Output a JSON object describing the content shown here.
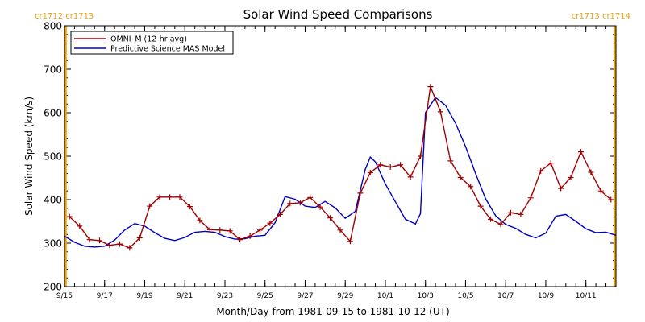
{
  "chart_data": {
    "type": "line",
    "title": "Solar Wind Speed Comparisons",
    "xlabel": "Month/Day from 1981-09-15 to 1981-10-12 (UT)",
    "ylabel": "Solar Wind Speed (km/s)",
    "xlim": [
      "1981-09-15T00:00",
      "1981-10-12T12:00"
    ],
    "ylim": [
      200,
      800
    ],
    "y_ticks": [
      200,
      300,
      400,
      500,
      600,
      700,
      800
    ],
    "x_tick_labels": [
      "9/15",
      "9/17",
      "9/19",
      "9/21",
      "9/23",
      "9/25",
      "9/27",
      "9/29",
      "10/1",
      "10/3",
      "10/5",
      "10/7",
      "10/9",
      "10/11"
    ],
    "x_tick_dates": [
      "1981-09-15",
      "1981-09-17",
      "1981-09-19",
      "1981-09-21",
      "1981-09-23",
      "1981-09-25",
      "1981-09-27",
      "1981-09-29",
      "1981-10-01",
      "1981-10-03",
      "1981-10-05",
      "1981-10-07",
      "1981-10-09",
      "1981-10-11"
    ],
    "legend_position": "top-left",
    "grid": false,
    "carrington_labels": {
      "left": "cr1712 cr1713",
      "right": "cr1713 cr1714",
      "left_date": "1981-09-15T00:00",
      "right_date": "1981-10-12T12:00",
      "color": "#f0a000"
    },
    "series": [
      {
        "name": "OMNI_M (12-hr avg)",
        "color": "#a00000",
        "markers": true,
        "points": [
          [
            "1981-09-15T06:00",
            361
          ],
          [
            "1981-09-15T18:00",
            339
          ],
          [
            "1981-09-16T06:00",
            308
          ],
          [
            "1981-09-16T18:00",
            306
          ],
          [
            "1981-09-17T06:00",
            295
          ],
          [
            "1981-09-17T18:00",
            298
          ],
          [
            "1981-09-18T06:00",
            289
          ],
          [
            "1981-09-18T18:00",
            312
          ],
          [
            "1981-09-19T06:00",
            385
          ],
          [
            "1981-09-19T18:00",
            406
          ],
          [
            "1981-09-20T06:00",
            406
          ],
          [
            "1981-09-20T18:00",
            406
          ],
          [
            "1981-09-21T06:00",
            384
          ],
          [
            "1981-09-21T18:00",
            352
          ],
          [
            "1981-09-22T06:00",
            331
          ],
          [
            "1981-09-22T18:00",
            330
          ],
          [
            "1981-09-23T06:00",
            328
          ],
          [
            "1981-09-23T18:00",
            308
          ],
          [
            "1981-09-24T06:00",
            316
          ],
          [
            "1981-09-24T18:00",
            330
          ],
          [
            "1981-09-25T06:00",
            346
          ],
          [
            "1981-09-25T18:00",
            366
          ],
          [
            "1981-09-26T06:00",
            391
          ],
          [
            "1981-09-26T18:00",
            393
          ],
          [
            "1981-09-27T06:00",
            405
          ],
          [
            "1981-09-27T18:00",
            383
          ],
          [
            "1981-09-28T06:00",
            358
          ],
          [
            "1981-09-28T18:00",
            330
          ],
          [
            "1981-09-29T06:00",
            304
          ],
          [
            "1981-09-29T18:00",
            415
          ],
          [
            "1981-09-30T06:00",
            462
          ],
          [
            "1981-09-30T18:00",
            480
          ],
          [
            "1981-10-01T06:00",
            475
          ],
          [
            "1981-10-01T18:00",
            480
          ],
          [
            "1981-10-02T06:00",
            452
          ],
          [
            "1981-10-02T18:00",
            500
          ],
          [
            "1981-10-03T06:00",
            660
          ],
          [
            "1981-10-03T18:00",
            602
          ],
          [
            "1981-10-04T06:00",
            489
          ],
          [
            "1981-10-04T18:00",
            451
          ],
          [
            "1981-10-05T06:00",
            430
          ],
          [
            "1981-10-05T18:00",
            385
          ],
          [
            "1981-10-06T06:00",
            355
          ],
          [
            "1981-10-06T18:00",
            343
          ],
          [
            "1981-10-07T06:00",
            370
          ],
          [
            "1981-10-07T18:00",
            366
          ],
          [
            "1981-10-08T06:00",
            404
          ],
          [
            "1981-10-08T18:00",
            466
          ],
          [
            "1981-10-09T06:00",
            484
          ],
          [
            "1981-10-09T18:00",
            426
          ],
          [
            "1981-10-10T06:00",
            451
          ],
          [
            "1981-10-10T18:00",
            510
          ],
          [
            "1981-10-11T06:00",
            463
          ],
          [
            "1981-10-11T18:00",
            420
          ],
          [
            "1981-10-12T06:00",
            400
          ]
        ]
      },
      {
        "name": "Predictive Science MAS Model",
        "color": "#0000c0",
        "markers": false,
        "points": [
          [
            "1981-09-15T00:00",
            316
          ],
          [
            "1981-09-15T12:00",
            302
          ],
          [
            "1981-09-16T00:00",
            293
          ],
          [
            "1981-09-16T12:00",
            291
          ],
          [
            "1981-09-17T00:00",
            293
          ],
          [
            "1981-09-17T12:00",
            307
          ],
          [
            "1981-09-18T00:00",
            330
          ],
          [
            "1981-09-18T12:00",
            345
          ],
          [
            "1981-09-19T00:00",
            339
          ],
          [
            "1981-09-19T12:00",
            324
          ],
          [
            "1981-09-20T00:00",
            311
          ],
          [
            "1981-09-20T12:00",
            306
          ],
          [
            "1981-09-21T00:00",
            313
          ],
          [
            "1981-09-21T12:00",
            325
          ],
          [
            "1981-09-22T00:00",
            327
          ],
          [
            "1981-09-22T12:00",
            325
          ],
          [
            "1981-09-23T00:00",
            315
          ],
          [
            "1981-09-23T12:00",
            309
          ],
          [
            "1981-09-24T00:00",
            310
          ],
          [
            "1981-09-24T12:00",
            316
          ],
          [
            "1981-09-25T00:00",
            318
          ],
          [
            "1981-09-25T12:00",
            347
          ],
          [
            "1981-09-26T00:00",
            407
          ],
          [
            "1981-09-26T12:00",
            401
          ],
          [
            "1981-09-27T00:00",
            385
          ],
          [
            "1981-09-27T12:00",
            382
          ],
          [
            "1981-09-28T00:00",
            396
          ],
          [
            "1981-09-28T12:00",
            381
          ],
          [
            "1981-09-29T00:00",
            357
          ],
          [
            "1981-09-29T12:00",
            373
          ],
          [
            "1981-09-30T00:00",
            470
          ],
          [
            "1981-09-30T06:00",
            498
          ],
          [
            "1981-09-30T12:00",
            487
          ],
          [
            "1981-10-01T00:00",
            436
          ],
          [
            "1981-10-01T12:00",
            395
          ],
          [
            "1981-10-02T00:00",
            355
          ],
          [
            "1981-10-02T12:00",
            344
          ],
          [
            "1981-10-02T18:00",
            368
          ],
          [
            "1981-10-03T00:00",
            600
          ],
          [
            "1981-10-03T12:00",
            635
          ],
          [
            "1981-10-04T00:00",
            617
          ],
          [
            "1981-10-04T12:00",
            576
          ],
          [
            "1981-10-05T00:00",
            522
          ],
          [
            "1981-10-05T12:00",
            460
          ],
          [
            "1981-10-06T00:00",
            402
          ],
          [
            "1981-10-06T12:00",
            363
          ],
          [
            "1981-10-07T00:00",
            343
          ],
          [
            "1981-10-07T12:00",
            334
          ],
          [
            "1981-10-08T00:00",
            320
          ],
          [
            "1981-10-08T12:00",
            312
          ],
          [
            "1981-10-09T00:00",
            323
          ],
          [
            "1981-10-09T12:00",
            362
          ],
          [
            "1981-10-10T00:00",
            366
          ],
          [
            "1981-10-10T12:00",
            350
          ],
          [
            "1981-10-11T00:00",
            333
          ],
          [
            "1981-10-11T12:00",
            324
          ],
          [
            "1981-10-12T00:00",
            325
          ],
          [
            "1981-10-12T12:00",
            318
          ]
        ]
      }
    ]
  }
}
